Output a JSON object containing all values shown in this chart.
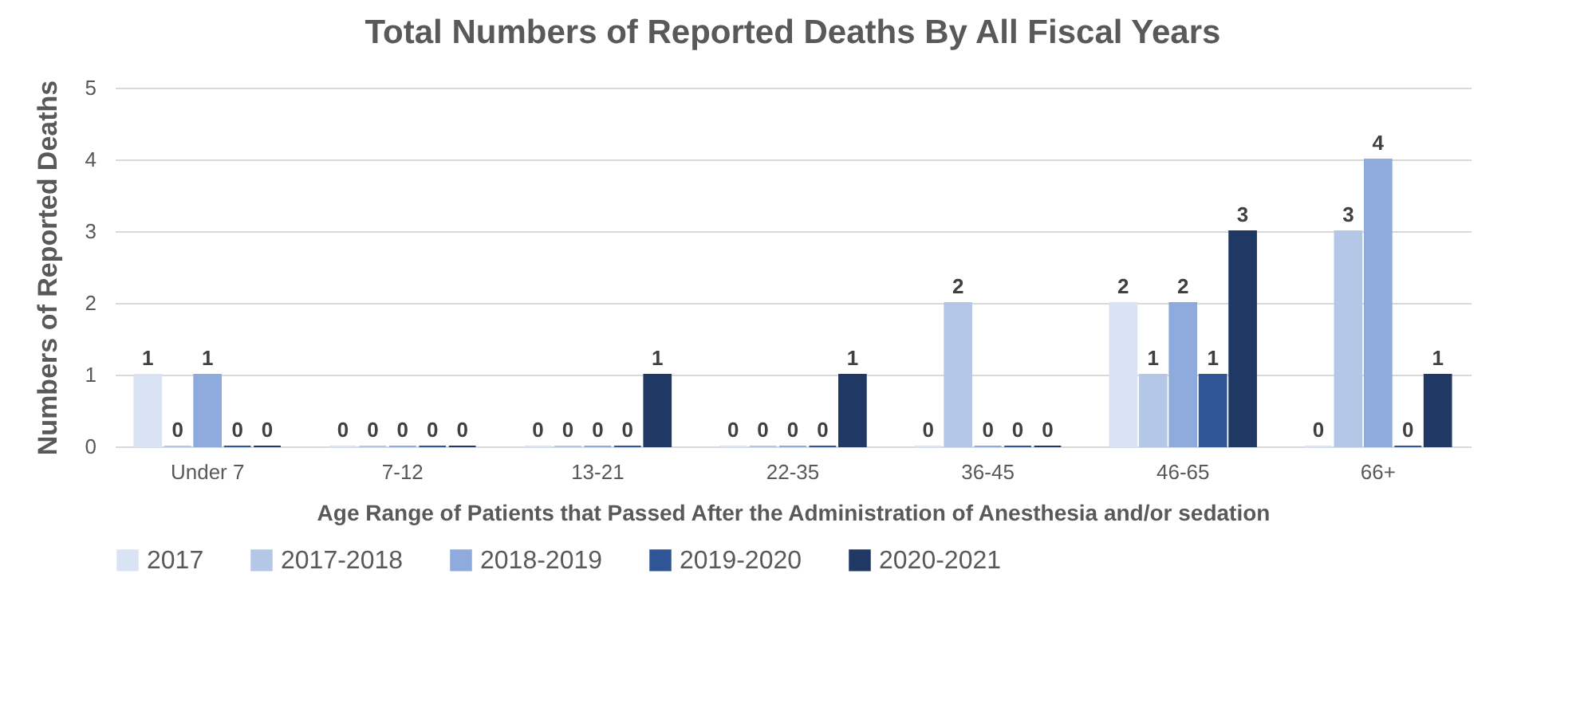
{
  "chart_data": {
    "type": "bar",
    "title": "Total Numbers of Reported Deaths By All Fiscal Years",
    "xlabel": "Age Range of Patients that Passed After the Administration of Anesthesia and/or sedation",
    "ylabel": "Numbers of Reported Deaths",
    "categories": [
      "Under 7",
      "7-12",
      "13-21",
      "22-35",
      "36-45",
      "46-65",
      "66+"
    ],
    "series": [
      {
        "name": "2017",
        "color": "#dae3f3",
        "values": [
          1,
          0,
          0,
          0,
          0,
          2,
          0
        ]
      },
      {
        "name": "2017-2018",
        "color": "#b4c7e7",
        "values": [
          0,
          0,
          0,
          0,
          2,
          1,
          3
        ]
      },
      {
        "name": "2018-2019",
        "color": "#8faadc",
        "values": [
          1,
          0,
          0,
          0,
          0,
          2,
          4
        ]
      },
      {
        "name": "2019-2020",
        "color": "#2f5597",
        "values": [
          0,
          0,
          0,
          0,
          0,
          1,
          0
        ]
      },
      {
        "name": "2020-2021",
        "color": "#203864",
        "values": [
          0,
          0,
          1,
          1,
          0,
          3,
          1
        ]
      }
    ],
    "ylim": [
      0,
      5
    ],
    "yticks": [
      0,
      1,
      2,
      3,
      4,
      5
    ],
    "grid": "y",
    "legend": "bottom",
    "data_labels": true
  }
}
